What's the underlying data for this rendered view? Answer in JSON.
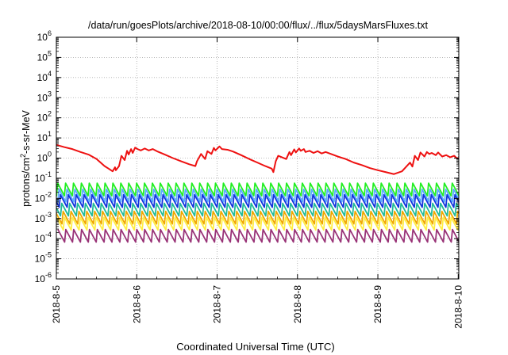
{
  "chart_data": {
    "type": "line",
    "title": "/data/run/goesPlots/archive/2018-08-10/00:00/flux/../flux/5daysMarsFluxes.txt",
    "xlabel": "Coordinated Universal Time (UTC)",
    "ylabel": {
      "base": "protons/cm",
      "sup": "2",
      "rest": "-s-sr-MeV"
    },
    "x_range": [
      "2018-08-05T00:00",
      "2018-08-10T00:10"
    ],
    "x_ticks": [
      "2018-8-5",
      "2018-8-6",
      "2018-8-7",
      "2018-8-8",
      "2018-8-9",
      "2018-8-10"
    ],
    "y_scale": "log",
    "ylim": [
      1e-06,
      1000000.0
    ],
    "y_ticks": [
      {
        "base": "10",
        "exp": "-6"
      },
      {
        "base": "10",
        "exp": "-5"
      },
      {
        "base": "10",
        "exp": "-4"
      },
      {
        "base": "10",
        "exp": "-3"
      },
      {
        "base": "10",
        "exp": "-2"
      },
      {
        "base": "10",
        "exp": "-1"
      },
      {
        "base": "10",
        "exp": "0"
      },
      {
        "base": "10",
        "exp": "1"
      },
      {
        "base": "10",
        "exp": "2"
      },
      {
        "base": "10",
        "exp": "3"
      },
      {
        "base": "10",
        "exp": "4"
      },
      {
        "base": "10",
        "exp": "5"
      },
      {
        "base": "10",
        "exp": "6"
      }
    ],
    "grid": true,
    "series": [
      {
        "color": "#ee1111",
        "x": [
          "2018-08-05T00:00",
          "2018-08-05T02:24",
          "2018-08-05T04:48",
          "2018-08-05T07:12",
          "2018-08-05T09:36",
          "2018-08-05T12:00",
          "2018-08-05T13:12",
          "2018-08-05T14:24",
          "2018-08-05T15:36",
          "2018-08-05T16:48",
          "2018-08-05T17:31",
          "2018-08-05T17:46",
          "2018-08-05T18:43",
          "2018-08-05T19:26",
          "2018-08-05T20:24",
          "2018-08-05T21:07",
          "2018-08-05T21:36",
          "2018-08-05T22:19",
          "2018-08-05T22:48",
          "2018-08-05T23:31",
          "2018-08-06T00:14",
          "2018-08-06T01:12",
          "2018-08-06T02:24",
          "2018-08-06T03:36",
          "2018-08-06T04:48",
          "2018-08-06T06:00",
          "2018-08-06T08:24",
          "2018-08-06T10:48",
          "2018-08-06T13:12",
          "2018-08-06T15:36",
          "2018-08-06T17:31",
          "2018-08-06T18:00",
          "2018-08-06T19:12",
          "2018-08-06T20:24",
          "2018-08-06T21:07",
          "2018-08-06T22:19",
          "2018-08-06T23:02",
          "2018-08-06T23:31",
          "2018-08-07T00:43",
          "2018-08-07T01:26",
          "2018-08-07T03:07",
          "2018-08-07T04:48",
          "2018-08-07T07:12",
          "2018-08-07T09:36",
          "2018-08-07T12:00",
          "2018-08-07T14:24",
          "2018-08-07T16:19",
          "2018-08-07T16:48",
          "2018-08-07T17:31",
          "2018-08-07T18:14",
          "2018-08-07T20:38",
          "2018-08-07T21:36",
          "2018-08-07T22:05",
          "2018-08-07T23:02",
          "2018-08-07T23:31",
          "2018-08-08T00:29",
          "2018-08-08T00:58",
          "2018-08-08T01:55",
          "2018-08-08T02:24",
          "2018-08-08T03:36",
          "2018-08-08T04:48",
          "2018-08-08T06:00",
          "2018-08-08T07:12",
          "2018-08-08T08:24",
          "2018-08-08T09:36",
          "2018-08-08T12:00",
          "2018-08-08T14:24",
          "2018-08-08T16:48",
          "2018-08-08T19:12",
          "2018-08-08T21:36",
          "2018-08-09T00:00",
          "2018-08-09T02:24",
          "2018-08-09T04:48",
          "2018-08-09T07:12",
          "2018-08-09T09:36",
          "2018-08-09T10:19",
          "2018-08-09T11:02",
          "2018-08-09T12:00",
          "2018-08-09T12:43",
          "2018-08-09T13:55",
          "2018-08-09T14:38",
          "2018-08-09T15:22",
          "2018-08-09T16:05",
          "2018-08-09T17:17",
          "2018-08-09T18:00",
          "2018-08-09T19:12",
          "2018-08-09T20:24",
          "2018-08-09T21:36",
          "2018-08-09T22:48",
          "2018-08-09T23:31",
          "2018-08-10T00:00",
          "2018-08-10T00:10"
        ],
        "y": [
          4.5,
          3.5,
          2.8,
          2.0,
          1.5,
          0.9,
          0.6,
          0.4,
          0.3,
          0.22,
          0.35,
          0.25,
          0.4,
          1.3,
          0.8,
          2.3,
          1.5,
          2.8,
          1.8,
          3.3,
          2.8,
          2.4,
          3.0,
          2.4,
          2.8,
          2.2,
          1.5,
          1.0,
          0.7,
          0.5,
          0.4,
          0.7,
          1.6,
          0.9,
          2.2,
          1.6,
          3.2,
          2.4,
          3.8,
          2.8,
          2.6,
          2.1,
          1.4,
          0.9,
          0.6,
          0.4,
          0.3,
          0.2,
          0.7,
          1.3,
          0.9,
          2.0,
          1.4,
          2.7,
          1.9,
          3.0,
          2.3,
          2.8,
          2.0,
          2.3,
          1.8,
          2.2,
          1.7,
          2.0,
          1.7,
          1.2,
          0.9,
          0.6,
          0.45,
          0.32,
          0.25,
          0.2,
          0.16,
          0.22,
          0.6,
          0.38,
          1.3,
          0.8,
          1.9,
          1.2,
          2.0,
          1.6,
          1.8,
          1.4,
          1.9,
          1.2,
          1.4,
          1.1,
          1.3,
          1.0,
          1.0,
          1.0
        ]
      },
      {
        "color": "#22ee22",
        "x": [
          "2018-08-05T00:00",
          "2018-08-10T00:10"
        ],
        "y": [
          0.03,
          0.03
        ]
      },
      {
        "color": "#5aaaff",
        "x": [
          "2018-08-05T00:00",
          "2018-08-10T00:10"
        ],
        "y": [
          0.015,
          0.015
        ]
      },
      {
        "color": "#1133dd",
        "x": [
          "2018-08-05T00:00",
          "2018-08-10T00:10"
        ],
        "y": [
          0.008,
          0.008
        ]
      },
      {
        "color": "#22bb99",
        "x": [
          "2018-08-05T00:00",
          "2018-08-10T00:10"
        ],
        "y": [
          0.003,
          0.003
        ]
      },
      {
        "color": "#f0a800",
        "x": [
          "2018-08-05T00:00",
          "2018-08-10T00:10"
        ],
        "y": [
          0.0012,
          0.0012
        ]
      },
      {
        "color": "#ffee44",
        "x": [
          "2018-08-05T00:00",
          "2018-08-10T00:10"
        ],
        "y": [
          0.0006,
          0.0006
        ]
      },
      {
        "color": "#993377",
        "x": [
          "2018-08-05T00:00",
          "2018-08-10T00:10"
        ],
        "y": [
          0.00015,
          0.00015
        ]
      }
    ]
  }
}
